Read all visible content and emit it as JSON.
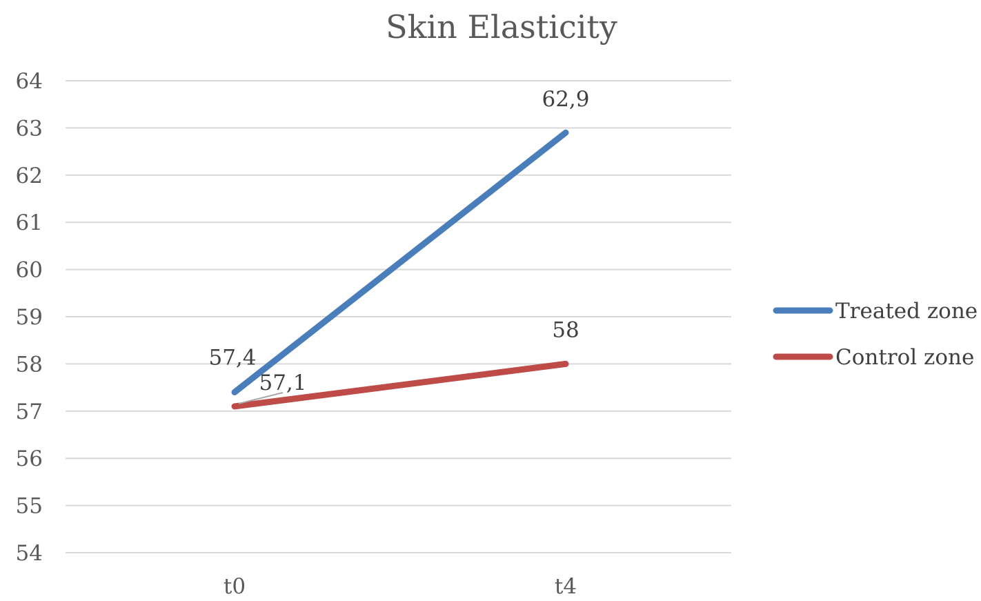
{
  "chart_data": {
    "type": "line",
    "title": "Skin Elasticity",
    "categories": [
      "t0",
      "t4"
    ],
    "ylim": [
      54,
      64
    ],
    "y_ticks": [
      "54",
      "55",
      "56",
      "57",
      "58",
      "59",
      "60",
      "61",
      "62",
      "63",
      "64"
    ],
    "grid": true,
    "legend_position": "right",
    "series": [
      {
        "name": "Treated zone",
        "values": [
          57.4,
          62.9
        ],
        "labels": [
          "57,4",
          "62,9"
        ],
        "color": "#4a7ebb"
      },
      {
        "name": "Control zone",
        "values": [
          57.1,
          58
        ],
        "labels": [
          "57,1",
          "58"
        ],
        "color": "#be4b48"
      }
    ]
  }
}
